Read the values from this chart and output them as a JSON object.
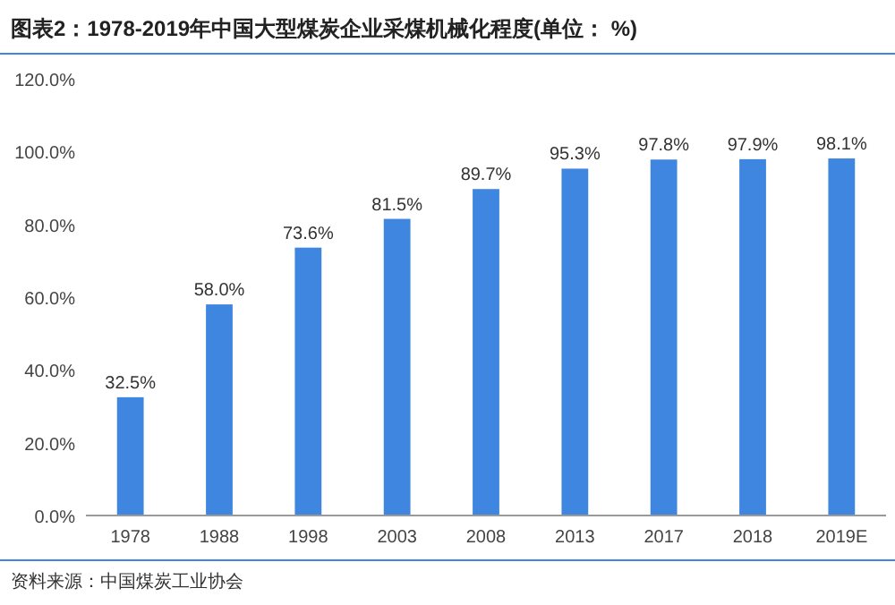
{
  "chart_data": {
    "type": "bar",
    "title": "图表2：1978-2019年中国大型煤炭企业采煤机械化程度(单位： %)",
    "categories": [
      "1978",
      "1988",
      "1998",
      "2003",
      "2008",
      "2013",
      "2017",
      "2018",
      "2019E"
    ],
    "values": [
      32.5,
      58.0,
      73.6,
      81.5,
      89.7,
      95.3,
      97.8,
      97.9,
      98.1
    ],
    "value_labels": [
      "32.5%",
      "58.0%",
      "73.6%",
      "81.5%",
      "89.7%",
      "95.3%",
      "97.8%",
      "97.9%",
      "98.1%"
    ],
    "color": "#3e86e0",
    "ylim": [
      0,
      120
    ],
    "yticks": [
      {
        "value": 0,
        "label": "0.0%"
      },
      {
        "value": 20,
        "label": "20.0%"
      },
      {
        "value": 40,
        "label": "40.0%"
      },
      {
        "value": 60,
        "label": "60.0%"
      },
      {
        "value": 80,
        "label": "80.0%"
      },
      {
        "value": 100,
        "label": "100.0%"
      },
      {
        "value": 120,
        "label": "120.0%"
      }
    ],
    "grid": false,
    "annotations": [
      "资料来源：中国煤炭工业协会"
    ]
  }
}
